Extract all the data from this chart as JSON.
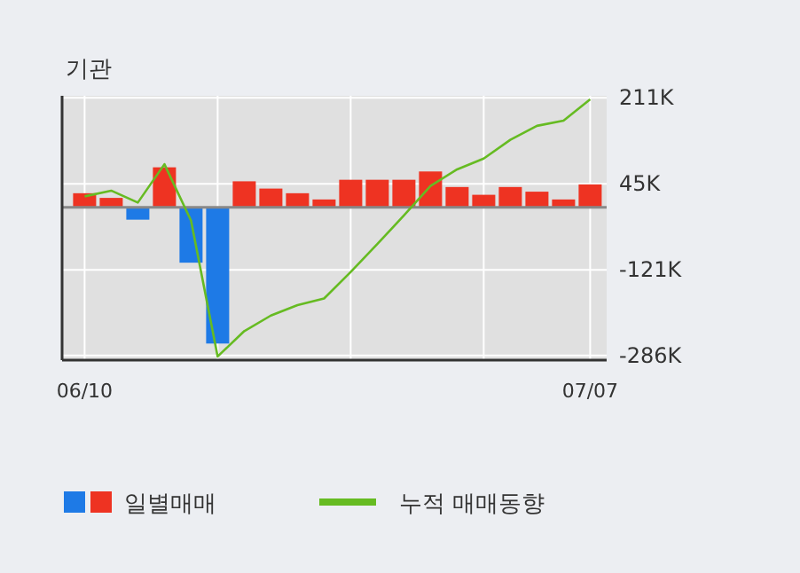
{
  "chart_data": {
    "type": "bar",
    "title": "기관",
    "categories": [
      "06/10",
      null,
      null,
      null,
      null,
      null,
      null,
      null,
      null,
      null,
      null,
      null,
      null,
      null,
      null,
      null,
      null,
      null,
      null,
      "07/07"
    ],
    "ylim": [
      -295000,
      215000
    ],
    "yticks": [
      {
        "value": 211000,
        "label": "211K"
      },
      {
        "value": 45000,
        "label": "45K"
      },
      {
        "value": -121000,
        "label": "-121K"
      },
      {
        "value": -286000,
        "label": "-286K"
      }
    ],
    "grid": true,
    "legend": "bottom",
    "series": [
      {
        "name": "일별매매",
        "colors": [
          "#ee3322",
          "#ee3322",
          "#1e7ae6",
          "#ee3322",
          "#1e7ae6",
          "#1e7ae6",
          "#ee3322",
          "#ee3322",
          "#ee3322",
          "#ee3322",
          "#ee3322",
          "#ee3322",
          "#ee3322",
          "#ee3322",
          "#ee3322",
          "#ee3322",
          "#ee3322",
          "#ee3322",
          "#ee3322",
          "#ee3322"
        ],
        "values": [
          27000,
          18000,
          -24000,
          77000,
          -107000,
          -263000,
          50000,
          36000,
          27000,
          15000,
          53000,
          53000,
          53000,
          69000,
          39000,
          24000,
          39000,
          30000,
          15000,
          44000
        ]
      },
      {
        "name": "누적 매매동향",
        "type": "line",
        "color": "#66bb22",
        "values": [
          21000,
          32000,
          9000,
          83000,
          -26000,
          -288000,
          -239000,
          -209000,
          -189000,
          -176000,
          -125000,
          -71000,
          -16000,
          41000,
          73000,
          94000,
          130000,
          157000,
          167000,
          208000
        ]
      }
    ]
  }
}
